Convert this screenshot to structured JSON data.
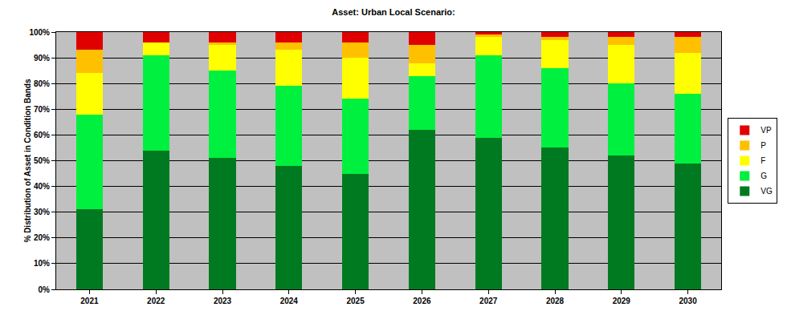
{
  "chart_data": {
    "type": "bar",
    "title": "Asset: Urban Local Scenario:",
    "y_label": "% Distribution of Asset in Condition Bands",
    "categories": [
      "2021",
      "2022",
      "2023",
      "2024",
      "2025",
      "2026",
      "2027",
      "2028",
      "2029",
      "2030"
    ],
    "stacked": true,
    "grid": true,
    "legend": "right",
    "ylim": [
      0,
      100
    ],
    "yticks": [
      {
        "value": 0,
        "label": "0%"
      },
      {
        "value": 10,
        "label": "10%"
      },
      {
        "value": 20,
        "label": "20%"
      },
      {
        "value": 30,
        "label": "30%"
      },
      {
        "value": 40,
        "label": "40%"
      },
      {
        "value": 50,
        "label": "50%"
      },
      {
        "value": 60,
        "label": "60%"
      },
      {
        "value": 70,
        "label": "70%"
      },
      {
        "value": 80,
        "label": "80%"
      },
      {
        "value": 90,
        "label": "90%"
      },
      {
        "value": 100,
        "label": "100%"
      }
    ],
    "series": [
      {
        "name": "VG",
        "color": "#007a20",
        "values": [
          31,
          54,
          51,
          48,
          45,
          62,
          59,
          55,
          52,
          49
        ]
      },
      {
        "name": "G",
        "color": "#00f040",
        "values": [
          37,
          37,
          34,
          31,
          29,
          21,
          32,
          31,
          28,
          27
        ]
      },
      {
        "name": "F",
        "color": "#ffff00",
        "values": [
          16,
          5,
          10,
          14,
          16,
          5,
          7,
          11,
          15,
          16
        ]
      },
      {
        "name": "P",
        "color": "#ffc000",
        "values": [
          9,
          0,
          1,
          3,
          6,
          7,
          1,
          1,
          3,
          6
        ]
      },
      {
        "name": "VP",
        "color": "#e00000",
        "values": [
          7,
          4,
          4,
          4,
          4,
          5,
          1,
          2,
          2,
          2
        ]
      }
    ]
  }
}
